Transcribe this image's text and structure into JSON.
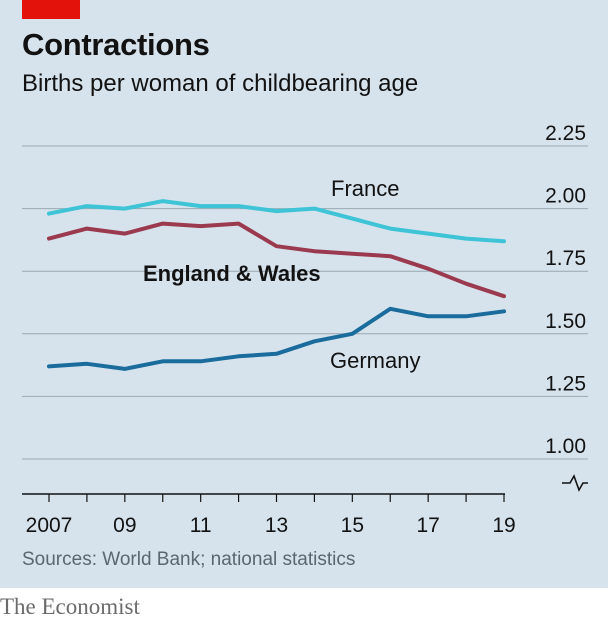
{
  "header": {
    "title": "Contractions",
    "subtitle": "Births per woman of childbearing age"
  },
  "footer": {
    "source": "Sources: World Bank; national statistics",
    "brand": "The Economist"
  },
  "colors": {
    "background": "#d6e3ec",
    "accent_tag": "#e3120b",
    "france": "#3ec4d6",
    "england_wales": "#9b3a4f",
    "germany": "#1a6c9c",
    "grid": "#9aa8b2",
    "axis": "#121212"
  },
  "chart_data": {
    "type": "line",
    "title": "Contractions",
    "subtitle": "Births per woman of childbearing age",
    "x": [
      2007,
      2008,
      2009,
      2010,
      2011,
      2012,
      2013,
      2014,
      2015,
      2016,
      2017,
      2018,
      2019
    ],
    "xticks": [
      2007,
      2009,
      2011,
      2013,
      2015,
      2017,
      2019
    ],
    "xtick_labels": [
      "2007",
      "09",
      "11",
      "13",
      "15",
      "17",
      "19"
    ],
    "ylim": [
      1.0,
      2.25
    ],
    "yticks": [
      1.0,
      1.25,
      1.5,
      1.75,
      2.0,
      2.25
    ],
    "ytick_labels": [
      "1.00",
      "1.25",
      "1.50",
      "1.75",
      "2.00",
      "2.25"
    ],
    "axis_break": true,
    "grid": true,
    "series": [
      {
        "name": "France",
        "color": "#3ec4d6",
        "values": [
          1.98,
          2.01,
          2.0,
          2.03,
          2.01,
          2.01,
          1.99,
          2.0,
          1.96,
          1.92,
          1.9,
          1.88,
          1.87
        ]
      },
      {
        "name": "England & Wales",
        "color": "#9b3a4f",
        "values": [
          1.88,
          1.92,
          1.9,
          1.94,
          1.93,
          1.94,
          1.85,
          1.83,
          1.82,
          1.81,
          1.76,
          1.7,
          1.65
        ]
      },
      {
        "name": "Germany",
        "color": "#1a6c9c",
        "values": [
          1.37,
          1.38,
          1.36,
          1.39,
          1.39,
          1.41,
          1.42,
          1.47,
          1.5,
          1.6,
          1.57,
          1.57,
          1.59
        ]
      }
    ]
  }
}
